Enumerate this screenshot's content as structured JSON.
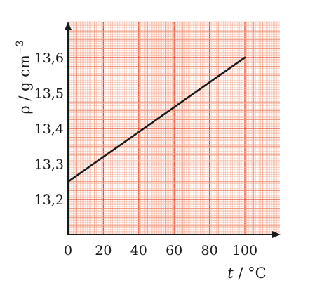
{
  "chart_data": {
    "type": "line",
    "title": "",
    "xlabel_var": "t",
    "xlabel_unit": " / °C",
    "ylabel": "ρ / g cm",
    "ylabel_sup": "−3",
    "xlim": [
      0,
      100
    ],
    "ylim": [
      13.1,
      13.7
    ],
    "x_ticks": [
      0,
      20,
      40,
      60,
      80,
      100
    ],
    "x_tick_labels": [
      "0",
      "20",
      "40",
      "60",
      "80",
      "100"
    ],
    "y_ticks": [
      13.2,
      13.3,
      13.4,
      13.5,
      13.6
    ],
    "y_tick_labels": [
      "13,2",
      "13,3",
      "13,4",
      "13,5",
      "13,6"
    ],
    "grid": true,
    "colors": {
      "grid_fine": "#f7b7a2",
      "grid_medium": "#f08f70",
      "grid_major": "#e6452a",
      "line": "#1a1a1a",
      "axis": "#1a1a1a"
    },
    "series": [
      {
        "x": [
          0,
          100
        ],
        "y": [
          13.25,
          13.6
        ]
      }
    ]
  }
}
